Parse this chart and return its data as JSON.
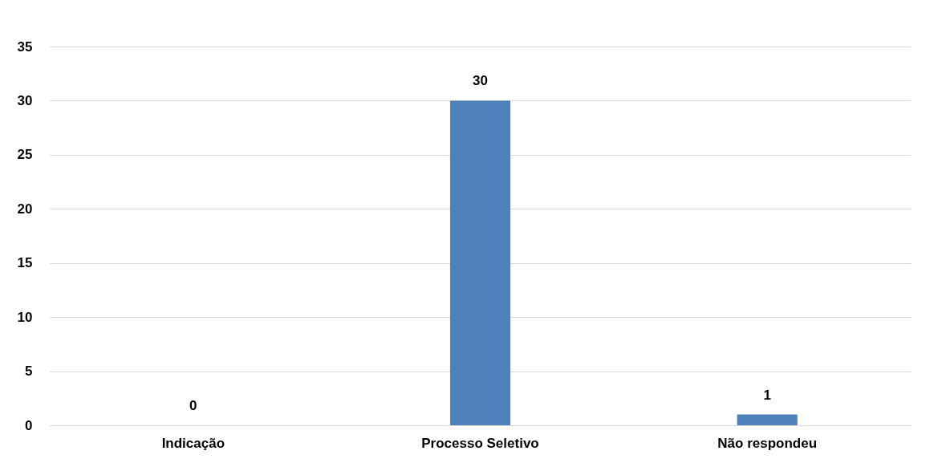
{
  "chart_data": {
    "type": "bar",
    "categories": [
      "Indicação",
      "Processo Seletivo",
      "Não respondeu"
    ],
    "values": [
      0,
      30,
      1
    ],
    "color": "#4f81bd",
    "ylim": [
      0,
      35
    ],
    "yticks": [
      0,
      5,
      10,
      15,
      20,
      25,
      30,
      35
    ],
    "grid": "y",
    "data_labels": true
  }
}
